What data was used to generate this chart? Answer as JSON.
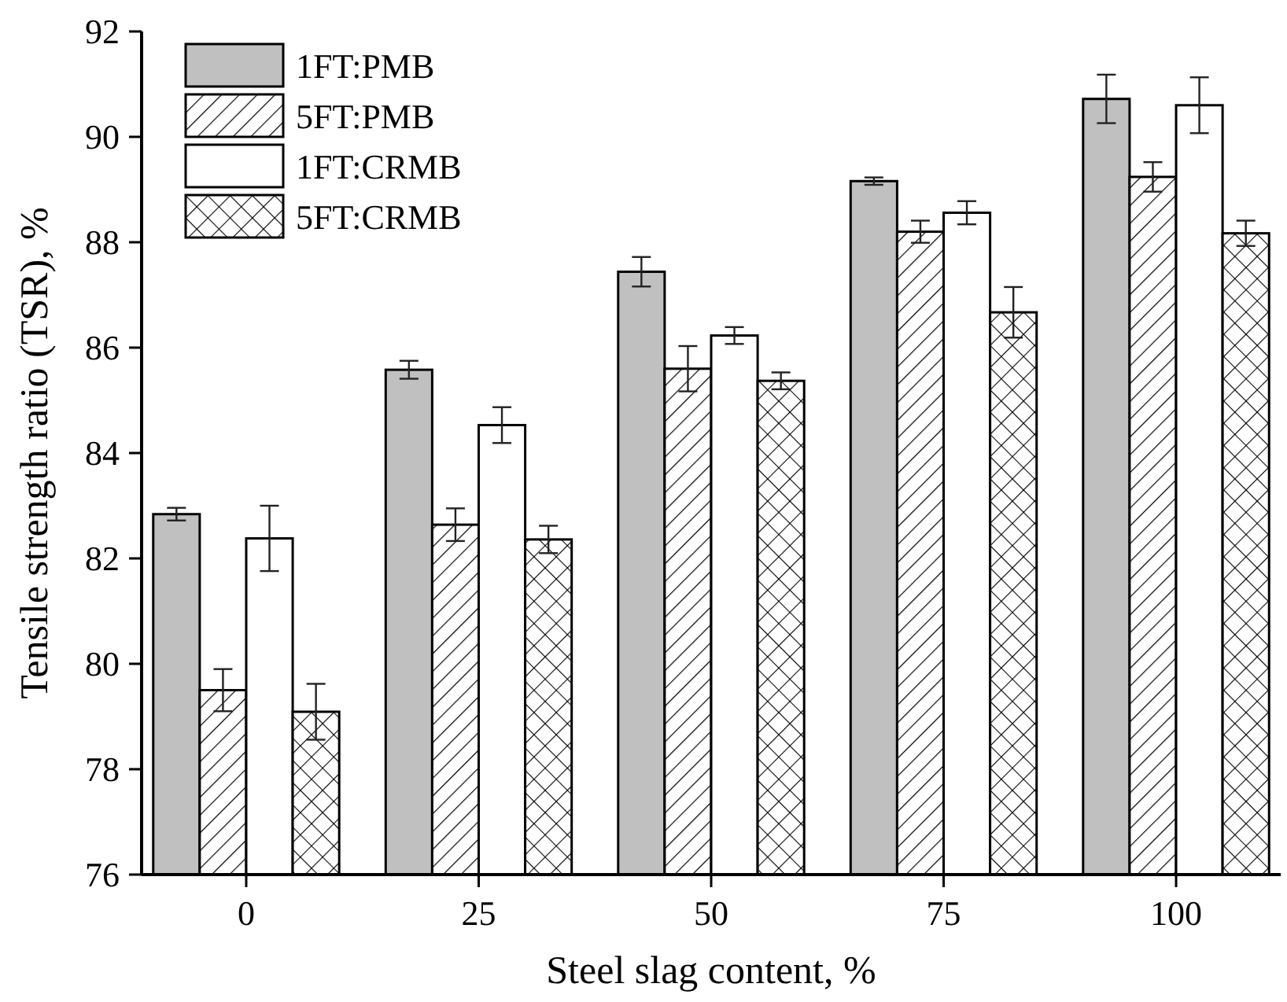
{
  "chart_data": {
    "type": "bar",
    "xlabel": "Steel slag content, %",
    "ylabel": "Tensile strength ratio (TSR), %",
    "categories": [
      "0",
      "25",
      "50",
      "75",
      "100"
    ],
    "series": [
      {
        "name": "1FT:PMB",
        "color": "#c0c0c0",
        "values": [
          82.84,
          85.58,
          87.44,
          89.16,
          90.72
        ],
        "errors": [
          0.12,
          0.17,
          0.28,
          0.07,
          0.46
        ]
      },
      {
        "name": "5FT:PMB",
        "color": "#000000",
        "values": [
          79.5,
          82.64,
          85.6,
          88.2,
          89.24
        ],
        "errors": [
          0.4,
          0.31,
          0.43,
          0.21,
          0.28
        ]
      },
      {
        "name": "1FT:CRMB",
        "color": "#ffffff",
        "values": [
          82.38,
          84.53,
          86.23,
          88.56,
          90.6
        ],
        "errors": [
          0.62,
          0.34,
          0.16,
          0.22,
          0.53
        ]
      },
      {
        "name": "5FT:CRMB",
        "color": "#000000",
        "values": [
          79.09,
          82.36,
          85.37,
          86.67,
          88.17
        ],
        "errors": [
          0.53,
          0.26,
          0.16,
          0.48,
          0.24
        ]
      }
    ],
    "ylim": [
      76,
      92
    ],
    "yticks": [
      76,
      78,
      80,
      82,
      84,
      86,
      88,
      90,
      92
    ],
    "grid": false,
    "legend": "top left"
  }
}
